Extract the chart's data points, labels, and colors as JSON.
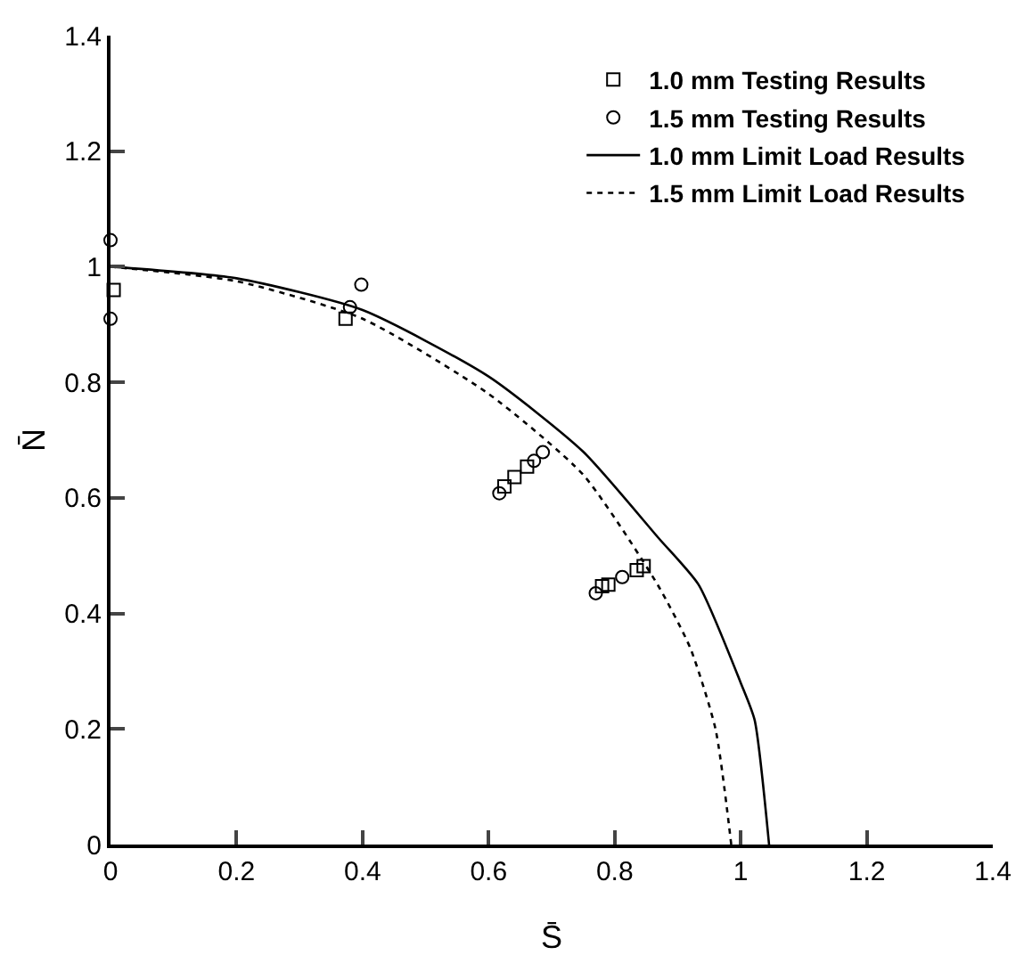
{
  "chart_data": {
    "type": "scatter",
    "xlabel": "S̄",
    "ylabel": "N̄",
    "xlim": [
      0,
      1.4
    ],
    "ylim": [
      0,
      1.4
    ],
    "xticks": [
      0,
      0.2,
      0.4,
      0.6,
      0.8,
      1,
      1.2,
      1.4
    ],
    "yticks": [
      0,
      0.2,
      0.4,
      0.6,
      0.8,
      1,
      1.2,
      1.4
    ],
    "grid": false,
    "legend": "top right",
    "series": [
      {
        "name": "1.0 mm Testing Results",
        "marker": "square",
        "color": "#000000",
        "x": [
          0.005,
          0.373,
          0.625,
          0.641,
          0.661,
          0.78,
          0.79,
          0.835,
          0.846
        ],
        "values": [
          0.96,
          0.91,
          0.62,
          0.636,
          0.654,
          0.447,
          0.45,
          0.475,
          0.482
        ]
      },
      {
        "name": "1.5 mm Testing Results",
        "marker": "circle",
        "color": "#000000",
        "x": [
          0,
          0,
          0.38,
          0.398,
          0.617,
          0.672,
          0.686,
          0.77,
          0.812
        ],
        "values": [
          1.046,
          0.91,
          0.93,
          0.969,
          0.608,
          0.664,
          0.679,
          0.435,
          0.463
        ]
      },
      {
        "name": "1.0 mm Limit Load Results",
        "type": "line",
        "line_style": "solid",
        "color": "#000000",
        "x": [
          0,
          0.2,
          0.4,
          0.6,
          0.75,
          0.87,
          0.933,
          1.0,
          1.022,
          1.045
        ],
        "values": [
          1,
          0.98,
          0.925,
          0.81,
          0.68,
          0.53,
          0.45,
          0.28,
          0.216,
          0
        ]
      },
      {
        "name": "1.5 mm Limit Load Results",
        "type": "line",
        "line_style": "dotted",
        "color": "#000000",
        "x": [
          0,
          0.2,
          0.4,
          0.6,
          0.75,
          0.868,
          0.92,
          0.96,
          0.985
        ],
        "values": [
          1,
          0.975,
          0.91,
          0.78,
          0.64,
          0.45,
          0.34,
          0.2,
          0
        ]
      }
    ]
  }
}
